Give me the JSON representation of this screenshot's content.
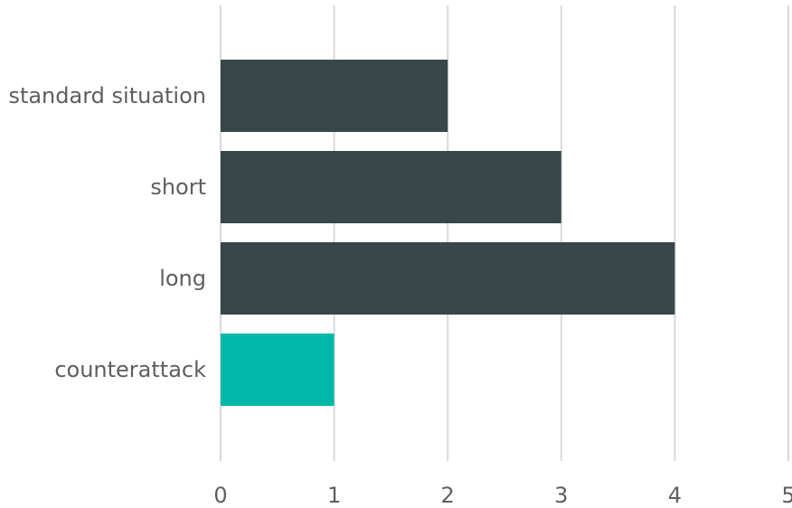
{
  "chart_data": {
    "type": "bar",
    "orientation": "horizontal",
    "categories": [
      "standard situation",
      "short",
      "long",
      "counterattack"
    ],
    "values": [
      2,
      3,
      4,
      1
    ],
    "colors": [
      "#37474a",
      "#37474a",
      "#37474a",
      "#01b8aa"
    ],
    "title": "",
    "xlabel": "",
    "ylabel": "",
    "xlim": [
      0,
      5
    ],
    "xticks": [
      "0",
      "1",
      "2",
      "3",
      "4",
      "5"
    ],
    "grid": true,
    "legend": "none"
  }
}
